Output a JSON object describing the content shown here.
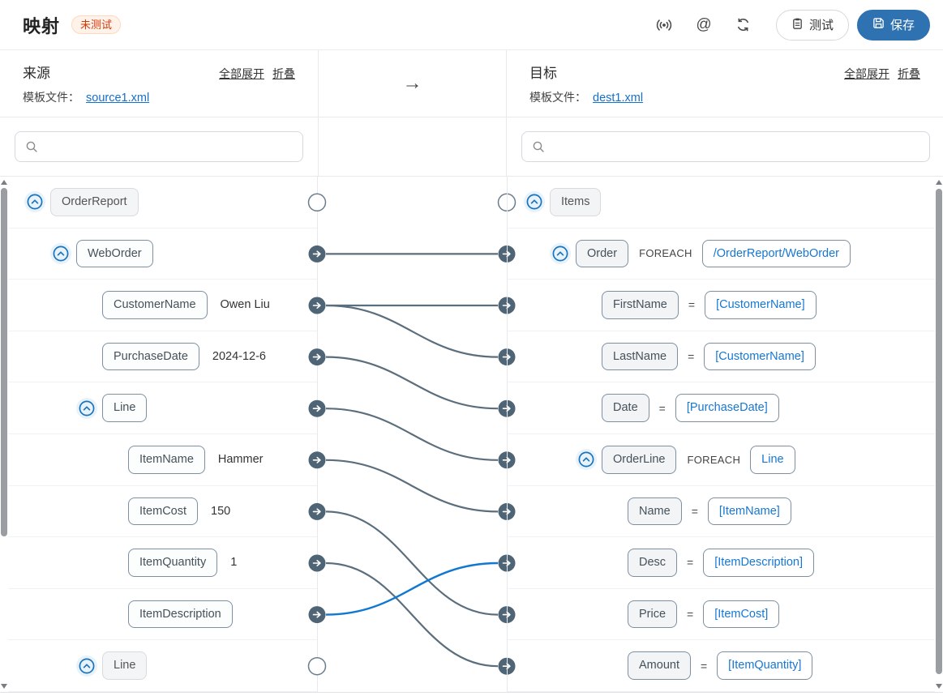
{
  "header": {
    "title": "映射",
    "status_badge": "未测试",
    "test_label": "测试",
    "save_label": "保存"
  },
  "transform_arrow": "→",
  "source_panel": {
    "title": "来源",
    "expand_all_label": "全部展开",
    "collapse_label": "折叠",
    "template_label": "模板文件：",
    "template_file": "source1.xml",
    "search_placeholder": ""
  },
  "target_panel": {
    "title": "目标",
    "expand_all_label": "全部展开",
    "collapse_label": "折叠",
    "template_label": "模板文件：",
    "template_file": "dest1.xml",
    "search_placeholder": ""
  },
  "source_tree": [
    {
      "label": "OrderReport",
      "level": 0,
      "expander": true,
      "muted": true,
      "port": "empty"
    },
    {
      "label": "WebOrder",
      "level": 1,
      "expander": true,
      "port": "arrow"
    },
    {
      "label": "CustomerName",
      "level": 2,
      "value": "Owen Liu",
      "port": "arrow"
    },
    {
      "label": "PurchaseDate",
      "level": 2,
      "value": "2024-12-6",
      "port": "arrow"
    },
    {
      "label": "Line",
      "level": 2,
      "expander": true,
      "port": "arrow"
    },
    {
      "label": "ItemName",
      "level": 3,
      "value": "Hammer",
      "port": "arrow"
    },
    {
      "label": "ItemCost",
      "level": 3,
      "value": "150",
      "port": "arrow"
    },
    {
      "label": "ItemQuantity",
      "level": 3,
      "value": "1",
      "port": "arrow"
    },
    {
      "label": "ItemDescription",
      "level": 3,
      "port": "arrow"
    },
    {
      "label": "Line",
      "level": 2,
      "expander": true,
      "muted": true,
      "port": "empty"
    }
  ],
  "target_tree": [
    {
      "label": "Items",
      "level": 0,
      "expander": true,
      "muted": true,
      "port": "empty"
    },
    {
      "label": "Order",
      "level": 1,
      "expander": true,
      "foreach_label": "FOREACH",
      "expr": "/OrderReport/WebOrder",
      "port": "arrow"
    },
    {
      "label": "FirstName",
      "level": 2,
      "op": "=",
      "expr": "[CustomerName]",
      "port": "arrow"
    },
    {
      "label": "LastName",
      "level": 2,
      "op": "=",
      "expr": "[CustomerName]",
      "port": "arrow"
    },
    {
      "label": "Date",
      "level": 2,
      "op": "=",
      "expr": "[PurchaseDate]",
      "port": "arrow"
    },
    {
      "label": "OrderLine",
      "level": 2,
      "expander": true,
      "foreach_label": "FOREACH",
      "expr": "Line",
      "port": "arrow"
    },
    {
      "label": "Name",
      "level": 3,
      "op": "=",
      "expr": "[ItemName]",
      "port": "arrow"
    },
    {
      "label": "Desc",
      "level": 3,
      "op": "=",
      "expr": "[ItemDescription]",
      "port": "arrow"
    },
    {
      "label": "Price",
      "level": 3,
      "op": "=",
      "expr": "[ItemCost]",
      "port": "arrow"
    },
    {
      "label": "Amount",
      "level": 3,
      "op": "=",
      "expr": "[ItemQuantity]",
      "port": "arrow"
    }
  ],
  "connections": [
    {
      "from": 1,
      "to": 1,
      "selected": false
    },
    {
      "from": 2,
      "to": 2,
      "selected": false
    },
    {
      "from": 2,
      "to": 3,
      "selected": false
    },
    {
      "from": 3,
      "to": 4,
      "selected": false
    },
    {
      "from": 4,
      "to": 5,
      "selected": false
    },
    {
      "from": 5,
      "to": 6,
      "selected": false
    },
    {
      "from": 6,
      "to": 8,
      "selected": false
    },
    {
      "from": 7,
      "to": 9,
      "selected": false
    },
    {
      "from": 8,
      "to": 7,
      "selected": true
    }
  ],
  "colors": {
    "accent_blue": "#2f72b2",
    "link_blue": "#1470cc",
    "chip_text_blue": "#1677d4",
    "wire": "#5b6e7d",
    "wire_selected": "#1178d2",
    "port_fill": "#4f6475",
    "port_empty_border": "#6b7d8c",
    "expander_blue": "#1a73b8",
    "badge_text": "#d4380d",
    "badge_bg": "#fff2e8",
    "badge_border": "#ffd8bf"
  }
}
